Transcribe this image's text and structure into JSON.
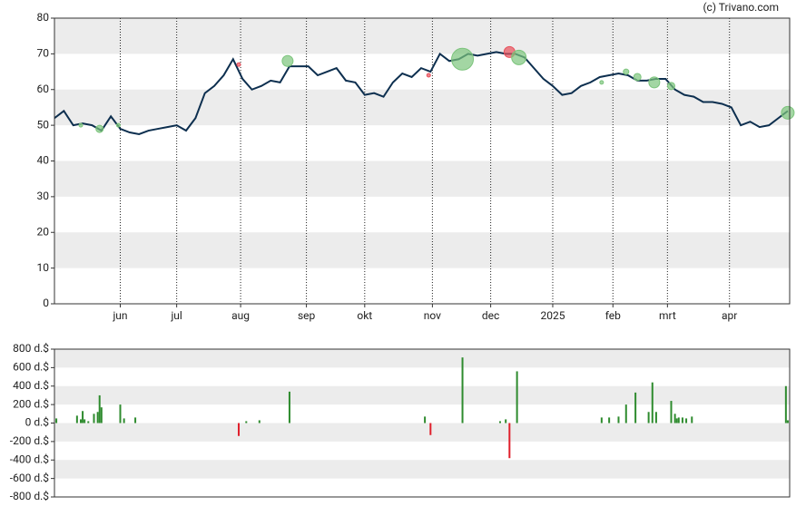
{
  "credit": "(c) Trivano.com",
  "chart_data": [
    {
      "type": "line",
      "xlim": [
        0,
        391
      ],
      "xticks": [
        {
          "value": 35,
          "label": "jun"
        },
        {
          "value": 65,
          "label": "jul"
        },
        {
          "value": 99,
          "label": "aug"
        },
        {
          "value": 134,
          "label": "sep"
        },
        {
          "value": 165,
          "label": "okt"
        },
        {
          "value": 201,
          "label": "nov"
        },
        {
          "value": 232,
          "label": "dec"
        },
        {
          "value": 265,
          "label": "2025"
        },
        {
          "value": 297,
          "label": "feb"
        },
        {
          "value": 326,
          "label": "mrt"
        },
        {
          "value": 359,
          "label": "apr"
        }
      ],
      "ylim": [
        0,
        80
      ],
      "yticks": [
        0,
        10,
        20,
        30,
        40,
        50,
        60,
        70,
        80
      ],
      "grid": true,
      "series": [
        {
          "color": "#0d2f4f",
          "x": [
            0,
            5,
            10,
            15,
            20,
            25,
            30,
            35,
            40,
            45,
            50,
            55,
            60,
            65,
            70,
            75,
            80,
            85,
            90,
            95,
            100,
            105,
            110,
            115,
            120,
            125,
            130,
            135,
            140,
            145,
            150,
            155,
            160,
            165,
            170,
            175,
            180,
            185,
            190,
            195,
            200,
            205,
            210,
            215,
            220,
            225,
            230,
            235,
            240,
            245,
            250,
            255,
            260,
            265,
            270,
            275,
            280,
            285,
            290,
            295,
            300,
            305,
            310,
            315,
            320,
            325,
            330,
            335,
            340,
            345,
            350,
            355,
            360,
            365,
            370,
            375,
            380,
            385,
            390
          ],
          "values": [
            52,
            54,
            50,
            50.5,
            50,
            48.5,
            52.5,
            49,
            48,
            47.5,
            48.5,
            49,
            49.5,
            50,
            48.5,
            52,
            59,
            61,
            64,
            68.5,
            63,
            60,
            61,
            62.5,
            62,
            66.5,
            66.5,
            66.5,
            64,
            65,
            66,
            62.5,
            62,
            58.5,
            59,
            58,
            62,
            64.5,
            63.5,
            66,
            65,
            70,
            68,
            68.5,
            70,
            69.5,
            70,
            70.5,
            70,
            70,
            69,
            66,
            63,
            61,
            58.5,
            59,
            61,
            62,
            63.5,
            64,
            64.5,
            64,
            62.5,
            62.5,
            63,
            63,
            60,
            58.5,
            58,
            56.5,
            56.5,
            56,
            55,
            50,
            51,
            49.5,
            50,
            52,
            54
          ]
        }
      ],
      "markers": {
        "x": [
          14,
          24,
          34,
          98,
          124,
          199,
          217,
          242,
          247,
          291,
          304,
          310,
          319,
          328,
          390
        ],
        "values": [
          50,
          49,
          50,
          67,
          68,
          64,
          68.5,
          70.5,
          69,
          62,
          65,
          63.5,
          62,
          61,
          53.5
        ],
        "sizes": [
          2,
          4,
          2,
          2,
          6,
          2,
          12,
          6,
          8,
          2,
          3,
          4,
          6,
          4,
          7
        ],
        "colors": [
          "#7cc47c",
          "#7cc47c",
          "#7cc47c",
          "#e8505b",
          "#7cc47c",
          "#e8505b",
          "#7cc47c",
          "#e8505b",
          "#7cc47c",
          "#7cc47c",
          "#7cc47c",
          "#7cc47c",
          "#7cc47c",
          "#7cc47c",
          "#7cc47c"
        ]
      }
    },
    {
      "type": "bar",
      "xlim": [
        0,
        391
      ],
      "ylim": [
        -800,
        800
      ],
      "yticks": [
        {
          "value": -800,
          "label": "-800 d.$"
        },
        {
          "value": -600,
          "label": "-600 d.$"
        },
        {
          "value": -400,
          "label": "-400 d.$"
        },
        {
          "value": -200,
          "label": "-200 d.$"
        },
        {
          "value": 0,
          "label": "0 d.$"
        },
        {
          "value": 200,
          "label": "200 d.$"
        },
        {
          "value": 400,
          "label": "400 d.$"
        },
        {
          "value": 600,
          "label": "600 d.$"
        },
        {
          "value": 800,
          "label": "800 d.$"
        }
      ],
      "grid": true,
      "positive_color": "#2e8b2e",
      "negative_color": "#e01f2b",
      "x": [
        1,
        12,
        14,
        15,
        16,
        18,
        21,
        23,
        24,
        25,
        35,
        37,
        43,
        98,
        102,
        109,
        125,
        197,
        200,
        217,
        237,
        240,
        242,
        246,
        291,
        295,
        300,
        304,
        309,
        316,
        318,
        320,
        328,
        330,
        331,
        332,
        334,
        336,
        339,
        389,
        390
      ],
      "values": [
        50,
        80,
        40,
        130,
        40,
        20,
        100,
        120,
        300,
        170,
        200,
        50,
        60,
        -140,
        20,
        30,
        340,
        70,
        -130,
        710,
        20,
        40,
        -380,
        560,
        60,
        60,
        70,
        200,
        330,
        120,
        440,
        120,
        240,
        100,
        50,
        60,
        60,
        50,
        70,
        400,
        30
      ]
    }
  ]
}
